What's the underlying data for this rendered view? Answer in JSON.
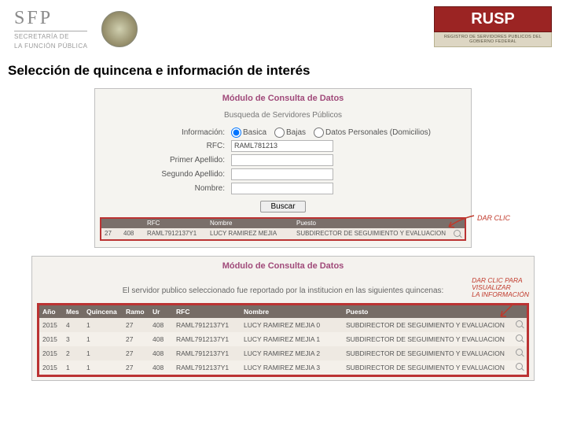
{
  "header": {
    "sfp_title": "SFP",
    "sfp_sub1": "SECRETARÍA DE",
    "sfp_sub2": "LA FUNCIÓN PÚBLICA",
    "rusp": "RUSP",
    "rusp_sub": "REGISTRO DE SERVIDORES PUBLICOS DEL GOBIERNO FEDERAL"
  },
  "section_title": "Selección de quincena e información de interés",
  "panel1": {
    "title": "Módulo de Consulta de Datos",
    "subtitle": "Busqueda de Servidores Públicos",
    "labels": {
      "info": "Información:",
      "rfc": "RFC:",
      "ap1": "Primer Apellido:",
      "ap2": "Segundo Apellido:",
      "nom": "Nombre:"
    },
    "radios": {
      "basica": "Basica",
      "bajas": "Bajas",
      "datos": "Datos Personales (Domicilios)"
    },
    "rfc_value": "RAML781213",
    "buscar": "Buscar",
    "darclic": "DAR CLIC",
    "result_header": {
      "c1": "",
      "c2": "",
      "c3": "RFC",
      "c4": "Nombre",
      "c5": "Puesto"
    },
    "result_row": {
      "c1": "27",
      "c2": "408",
      "c3": "RAML7912137Y1",
      "c4": "LUCY  RAMIREZ  MEJIA",
      "c5": "SUBDIRECTOR DE SEGUIMIENTO Y EVALUACION"
    }
  },
  "panel2": {
    "title": "Módulo de Consulta de Datos",
    "msg": "El servidor publico seleccionado fue reportado por la institucion en las siguientes quincenas:",
    "note1": "DAR CLIC PARA",
    "note2": "VISUALIZAR",
    "note3": "LA INFORMACIÓN",
    "columns": {
      "anio": "Año",
      "mes": "Mes",
      "quincena": "Quincena",
      "ramo": "Ramo",
      "ur": "Ur",
      "rfc": "RFC",
      "nombre": "Nombre",
      "puesto": "Puesto"
    },
    "rows": [
      {
        "anio": "2015",
        "mes": "4",
        "quincena": "1",
        "ramo": "27",
        "ur": "408",
        "rfc": "RAML7912137Y1",
        "nombre": "LUCY  RAMIREZ  MEJIA  0",
        "puesto": "SUBDIRECTOR DE SEGUIMIENTO Y EVALUACION"
      },
      {
        "anio": "2015",
        "mes": "3",
        "quincena": "1",
        "ramo": "27",
        "ur": "408",
        "rfc": "RAML7912137Y1",
        "nombre": "LUCY  RAMIREZ  MEJIA  1",
        "puesto": "SUBDIRECTOR DE SEGUIMIENTO Y EVALUACION"
      },
      {
        "anio": "2015",
        "mes": "2",
        "quincena": "1",
        "ramo": "27",
        "ur": "408",
        "rfc": "RAML7912137Y1",
        "nombre": "LUCY  RAMIREZ  MEJIA  2",
        "puesto": "SUBDIRECTOR DE SEGUIMIENTO Y EVALUACION"
      },
      {
        "anio": "2015",
        "mes": "1",
        "quincena": "1",
        "ramo": "27",
        "ur": "408",
        "rfc": "RAML7912137Y1",
        "nombre": "LUCY  RAMIREZ  MEJIA  3",
        "puesto": "SUBDIRECTOR DE SEGUIMIENTO Y EVALUACION"
      }
    ]
  }
}
